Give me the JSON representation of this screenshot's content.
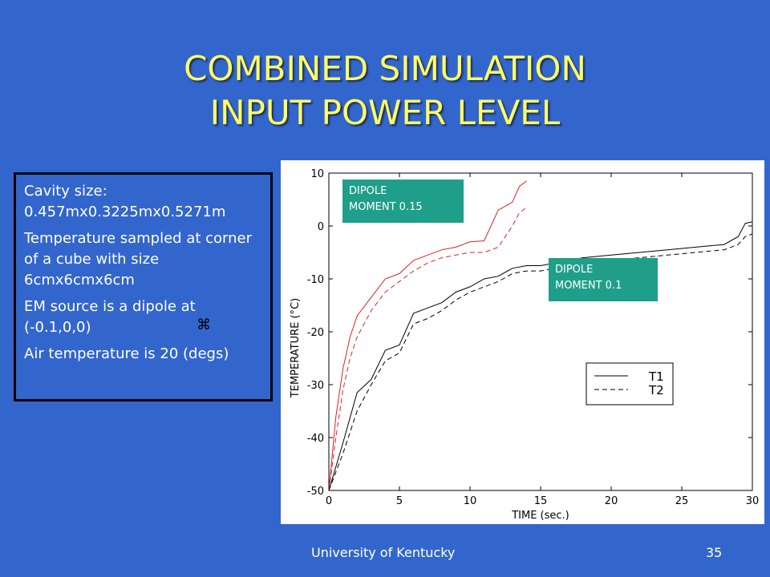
{
  "slide": {
    "title_lines": [
      "COMBINED SIMULATION",
      "INPUT POWER LEVEL"
    ],
    "info_items": [
      "Cavity size: 0.457mx0.3225mx0.5271m",
      "Temperature sampled at corner of a cube with size 6cmx6cmx6cm",
      "EM source is a dipole at (-0.1,0,0)",
      "Air temperature is 20 (degs)"
    ],
    "footer_center": "University of Kentucky",
    "footer_page": "35"
  },
  "annotations": {
    "dipole_015": [
      "DIPOLE",
      "MOMENT 0.15"
    ],
    "dipole_01": [
      "DIPOLE",
      "MOMENT 0.1"
    ]
  },
  "chart_data": {
    "type": "line",
    "xlabel": "TIME (sec.)",
    "ylabel": "TEMPERATURE (°C)",
    "xlim": [
      0,
      30
    ],
    "ylim": [
      -50,
      10
    ],
    "xticks": [
      0,
      5,
      10,
      15,
      20,
      25,
      30
    ],
    "yticks": [
      10,
      0,
      -10,
      -20,
      -30,
      -40,
      -50
    ],
    "grid": false,
    "legend": {
      "placement": "lower-right",
      "entries": [
        "T1",
        "T2"
      ]
    },
    "colors": {
      "dipole_015": "#dd2222",
      "dipole_01": "#000000"
    },
    "series": [
      {
        "name": "T1",
        "group": "dipole_015",
        "style": "solid",
        "x": [
          0,
          0.5,
          1,
          1.5,
          2,
          3,
          4,
          5,
          6,
          7,
          8,
          9,
          10,
          11,
          12,
          13,
          13.5,
          14
        ],
        "y": [
          -50,
          -36,
          -27,
          -21,
          -17,
          -13.5,
          -10,
          -9,
          -6.5,
          -5.5,
          -4.5,
          -4,
          -3,
          -2.8,
          3,
          4.5,
          7.5,
          8.5
        ]
      },
      {
        "name": "T2",
        "group": "dipole_015",
        "style": "dashed",
        "x": [
          0,
          0.5,
          1,
          1.5,
          2,
          3,
          4,
          5,
          6,
          7,
          8,
          9,
          10,
          11,
          12,
          13,
          13.5,
          14
        ],
        "y": [
          -50,
          -40,
          -31,
          -25,
          -21,
          -16,
          -12.5,
          -10.5,
          -8.5,
          -7,
          -6,
          -5.5,
          -5,
          -5,
          -4,
          0,
          2.5,
          3.5
        ]
      },
      {
        "name": "T1",
        "group": "dipole_01",
        "style": "solid",
        "x": [
          0,
          1,
          2,
          3,
          4,
          5,
          6,
          7,
          8,
          9,
          10,
          11,
          12,
          13,
          14,
          15,
          16,
          17,
          18,
          20,
          22,
          24,
          26,
          28,
          29,
          29.5,
          30
        ],
        "y": [
          -50,
          -41,
          -31.5,
          -29,
          -23.5,
          -22.5,
          -16.5,
          -15.5,
          -14.5,
          -12.5,
          -11.5,
          -10,
          -9.5,
          -8,
          -7.5,
          -7.5,
          -7,
          -6.5,
          -6,
          -5.5,
          -5,
          -4.5,
          -4,
          -3.5,
          -2,
          0.5,
          0.8
        ]
      },
      {
        "name": "T2",
        "group": "dipole_01",
        "style": "dashed",
        "x": [
          0,
          1,
          2,
          3,
          4,
          5,
          6,
          7,
          8,
          9,
          10,
          11,
          12,
          13,
          14,
          15,
          16,
          17,
          18,
          20,
          22,
          24,
          26,
          28,
          29,
          29.5,
          30
        ],
        "y": [
          -50,
          -43,
          -35,
          -30,
          -25.5,
          -24,
          -18.5,
          -17.5,
          -16,
          -14,
          -12.5,
          -11.5,
          -10.5,
          -9,
          -8.5,
          -8.5,
          -8,
          -7.5,
          -7,
          -6.5,
          -6,
          -5.5,
          -5,
          -4.5,
          -3.5,
          -2,
          -1.5
        ]
      }
    ]
  }
}
